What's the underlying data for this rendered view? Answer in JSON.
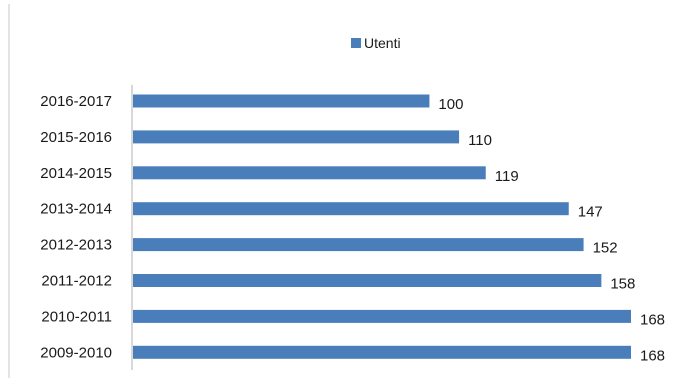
{
  "chart_data": {
    "type": "bar",
    "orientation": "horizontal",
    "categories": [
      "2016-2017",
      "2015-2016",
      "2014-2015",
      "2013-2014",
      "2012-2013",
      "2011-2012",
      "2010-2011",
      "2009-2010"
    ],
    "series": [
      {
        "name": "Utenti",
        "values": [
          100,
          110,
          119,
          147,
          152,
          158,
          168,
          168
        ],
        "color": "#4a7ebb"
      }
    ],
    "data_labels": true,
    "xlim": [
      0,
      168
    ],
    "grid": false,
    "legend": "top-center"
  }
}
